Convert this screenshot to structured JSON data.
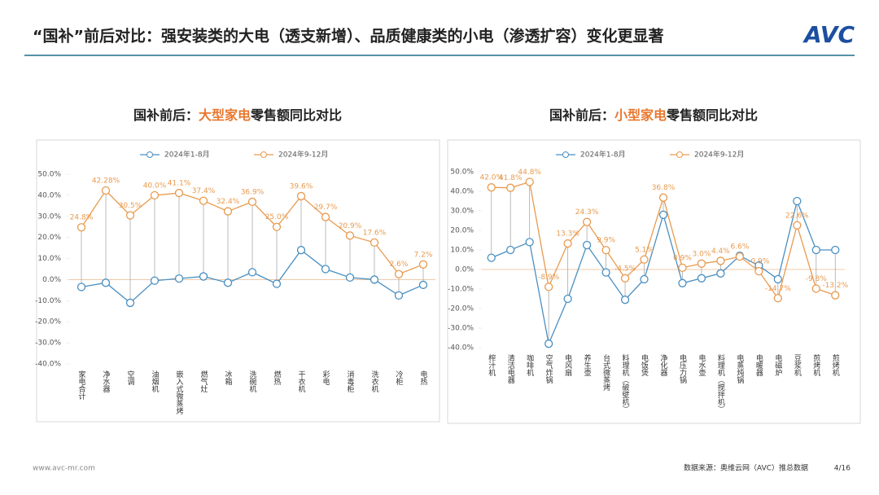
{
  "header": {
    "title": "“国补”前后对比：强安装类的大电（透支新增）、品质健康类的小电（渗透扩容）变化更显著",
    "logo": "AVC"
  },
  "chart_data": [
    {
      "type": "line",
      "title_parts": [
        "国补前后：",
        "大型家电",
        "零售额同比对比"
      ],
      "title_highlight_color": "#e8772e",
      "categories": [
        "家电合计",
        "净水器",
        "空调",
        "油烟机",
        "嵌入式微蒸烤",
        "燃气灶",
        "冰箱",
        "洗碗机",
        "燃热",
        "干衣机",
        "彩电",
        "消毒柜",
        "洗衣机",
        "冷柜",
        "电热"
      ],
      "series": [
        {
          "name": "2024年1-8月",
          "color": "#4a8fc1",
          "values": [
            -3.5,
            -1.5,
            -11,
            -0.5,
            0.5,
            1.5,
            -1.5,
            3.5,
            -2,
            14,
            5,
            1,
            0,
            -7.5,
            -2.5
          ]
        },
        {
          "name": "2024年9-12月",
          "color": "#e89a4f",
          "values": [
            24.8,
            42.28,
            30.5,
            40.0,
            41.1,
            37.4,
            32.4,
            36.9,
            25.0,
            39.6,
            29.7,
            20.9,
            17.6,
            2.6,
            7.2
          ],
          "value_labels": [
            "24.8%",
            "42.28%",
            "30.5%",
            "40.0%",
            "41.1%",
            "37.4%",
            "32.4%",
            "36.9%",
            "25.0%",
            "39.6%",
            "29.7%",
            "20.9%",
            "17.6%",
            "2.6%",
            "7.2%"
          ]
        }
      ],
      "ylim": [
        -40,
        50
      ],
      "yticks": [
        {
          "value": -40,
          "label": "-40.0%"
        },
        {
          "value": -30,
          "label": "-30.0%"
        },
        {
          "value": -20,
          "label": "-20.0%"
        },
        {
          "value": -10,
          "label": "-10.0%"
        },
        {
          "value": 0,
          "label": "0.0%"
        },
        {
          "value": 10,
          "label": "10.0%"
        },
        {
          "value": 20,
          "label": "20.0%"
        },
        {
          "value": 30,
          "label": "30.0%"
        },
        {
          "value": 40,
          "label": "40.0%"
        },
        {
          "value": 50,
          "label": "50.0%"
        }
      ],
      "drop_lines": true,
      "legend": "top"
    },
    {
      "type": "line",
      "title_parts": [
        "国补前后：",
        "小型家电",
        "零售额同比对比"
      ],
      "title_highlight_color": "#e8772e",
      "categories": [
        "榨汁机",
        "清洁电器",
        "咖啡机",
        "空气炸锅",
        "电风扇",
        "养生壶",
        "台式微蒸烤",
        "料理机（破壁机）",
        "电饭煲",
        "净化器",
        "电压力锅",
        "电水壶",
        "料理机（搅拌机）",
        "电蒸炖锅",
        "电暖器",
        "电磁炉",
        "豆浆机",
        "煎烤机",
        "煎烤机"
      ],
      "series": [
        {
          "name": "2024年1-8月",
          "color": "#4a8fc1",
          "values": [
            6,
            10,
            14,
            -38,
            -15,
            12.5,
            -1.5,
            -15.5,
            -5,
            28,
            -7,
            -4.5,
            -2,
            7,
            2,
            -5,
            35,
            10,
            10
          ]
        },
        {
          "name": "2024年9-12月",
          "color": "#e89a4f",
          "values": [
            42.0,
            41.8,
            44.8,
            -8.9,
            13.3,
            24.3,
            9.9,
            -4.5,
            5.1,
            36.8,
            0.9,
            3.0,
            4.4,
            6.6,
            -0.9,
            -14.7,
            22.6,
            -9.8,
            -13.2
          ],
          "value_labels": [
            "42.0%",
            "41.8%",
            "44.8%",
            "-8.9%",
            "13.3%",
            "24.3%",
            "9.9%",
            "-4.5%",
            "5.1%",
            "36.8%",
            "0.9%",
            "3.0%",
            "4.4%",
            "6.6%",
            "-0.9%",
            "-14.7%",
            "22.6%",
            "-9.8%",
            "-13.2%"
          ]
        }
      ],
      "ylim": [
        -40,
        50
      ],
      "yticks": [
        {
          "value": -40,
          "label": "-40.0%"
        },
        {
          "value": -30,
          "label": "-30.0%"
        },
        {
          "value": -20,
          "label": "-20.0%"
        },
        {
          "value": -10,
          "label": "-10.0%"
        },
        {
          "value": 0,
          "label": "0.0%"
        },
        {
          "value": 10,
          "label": "10.0%"
        },
        {
          "value": 20,
          "label": "20.0%"
        },
        {
          "value": 30,
          "label": "30.0%"
        },
        {
          "value": 40,
          "label": "40.0%"
        },
        {
          "value": 50,
          "label": "50.0%"
        }
      ],
      "drop_lines": true,
      "legend": "top"
    }
  ],
  "footer": {
    "url": "www.avc-mr.com",
    "source": "数据来源：奥维云网（AVC）推总数据",
    "page": "4/16"
  }
}
